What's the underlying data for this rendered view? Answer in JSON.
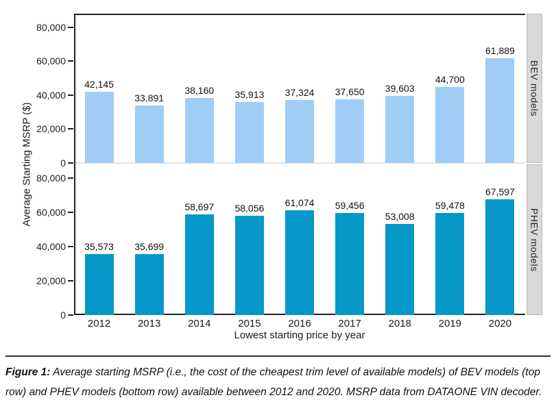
{
  "chart_data": {
    "type": "bar",
    "title": "",
    "categories": [
      "2012",
      "2013",
      "2014",
      "2015",
      "2016",
      "2017",
      "2018",
      "2019",
      "2020"
    ],
    "series": [
      {
        "name": "BEV models",
        "color": "#9fcdf6",
        "values": [
          42145,
          33891,
          38160,
          35913,
          37324,
          37650,
          39603,
          44700,
          61889
        ]
      },
      {
        "name": "PHEV models",
        "color": "#0598c9",
        "values": [
          35573,
          35699,
          58697,
          58056,
          61074,
          59456,
          53008,
          59478,
          67597
        ]
      }
    ],
    "facet_labels": [
      "BEV models",
      "PHEV models"
    ],
    "ylabel": "Average Starting MSRP ($)",
    "xlabel": "Lowest starting price by year",
    "ylim": [
      0,
      88000
    ],
    "yticks": [
      0,
      20000,
      40000,
      60000,
      80000
    ],
    "grid": false,
    "legend_position": "none",
    "bar_value_labels": true,
    "strip_background": "#d9d9d9",
    "axis_color": "#1f1f1f"
  },
  "caption": {
    "label": "Figure 1:",
    "text": " Average starting MSRP (i.e., the cost of the cheapest trim level of available models) of BEV models (top row) and PHEV models (bottom row) available between 2012 and 2020. MSRP data from DATAONE VIN decoder."
  }
}
